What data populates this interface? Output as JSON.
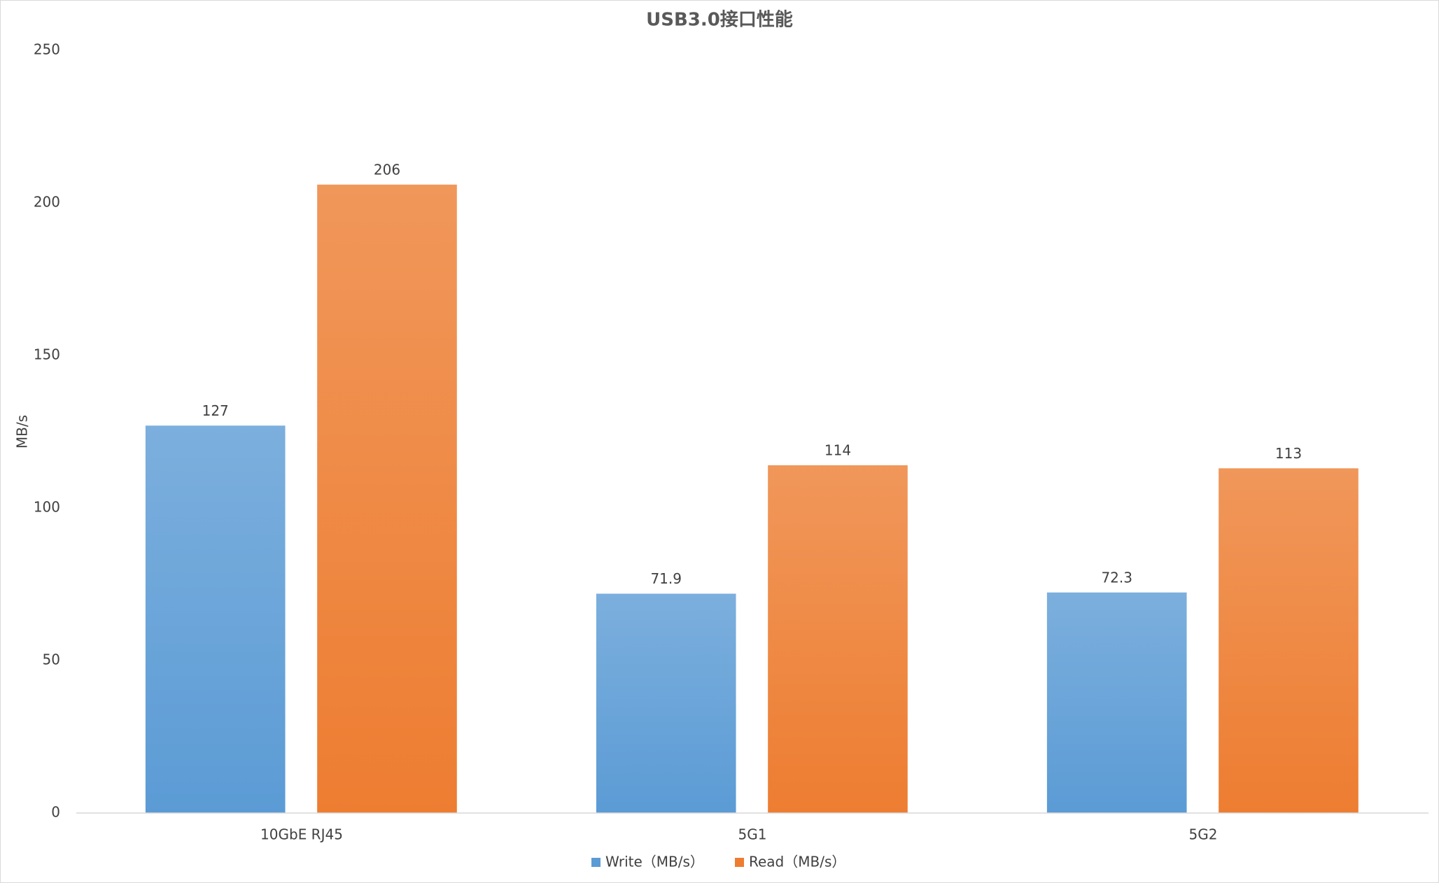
{
  "chart_data": {
    "type": "bar",
    "title": "USB3.0接口性能",
    "y_label": "MB/s",
    "categories": [
      "10GbE RJ45",
      "5G1",
      "5G2"
    ],
    "series": [
      {
        "name": "Write（MB/s）",
        "color": "#5b9bd5",
        "values": [
          127,
          71.9,
          72.3
        ]
      },
      {
        "name": "Read（MB/s）",
        "color": "#ed7d31",
        "values": [
          206,
          114,
          113
        ]
      }
    ],
    "ylim": [
      0,
      250
    ],
    "yticks": [
      0,
      50,
      100,
      150,
      200,
      250
    ],
    "grid": false,
    "legend": "bottom"
  }
}
